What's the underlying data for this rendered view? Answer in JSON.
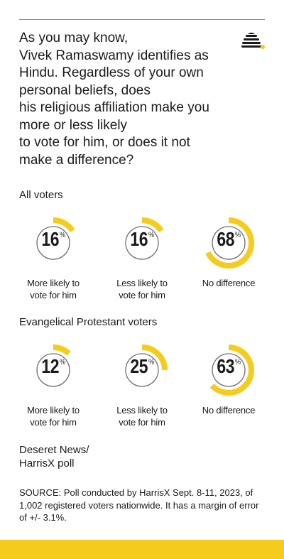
{
  "question": "As you may know,\nVivek Ramaswamy identifies as\nHindu. Regardless of your own\npersonal beliefs, does\nhis religious affiliation make you\nmore or less likely\nto vote for him, or does it not\nmake a difference?",
  "colors": {
    "accent": "#f5cb1c",
    "ring": "#6e6e6e",
    "text": "#1a1a1a"
  },
  "chart_data": [
    {
      "type": "pie",
      "group": "All voters",
      "categories": [
        "More likely to\nvote for him",
        "Less likely to\nvote for him",
        "No difference"
      ],
      "values": [
        16,
        16,
        68
      ],
      "unit": "%"
    },
    {
      "type": "pie",
      "group": "Evangelical Protestant voters",
      "categories": [
        "More likely to\nvote for him",
        "Less likely to\nvote for him",
        "No difference"
      ],
      "values": [
        12,
        25,
        63
      ],
      "unit": "%"
    }
  ],
  "credit": "Deseret News/\nHarrisX poll",
  "source": "SOURCE: Poll conducted by HarrisX Sept. 8-11, 2023, of 1,002 registered voters nationwide. It has a margin of error of +/- 3.1%."
}
